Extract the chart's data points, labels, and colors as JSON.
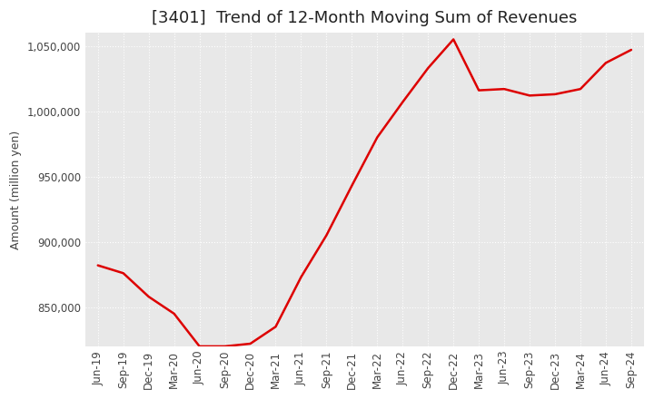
{
  "title": "[3401]  Trend of 12-Month Moving Sum of Revenues",
  "ylabel": "Amount (million yen)",
  "background_color": "#ffffff",
  "plot_bg_color": "#e8e8e8",
  "line_color": "#dd0000",
  "grid_color": "#ffffff",
  "x_labels": [
    "Jun-19",
    "Sep-19",
    "Dec-19",
    "Mar-20",
    "Jun-20",
    "Sep-20",
    "Dec-20",
    "Mar-21",
    "Jun-21",
    "Sep-21",
    "Dec-21",
    "Mar-22",
    "Jun-22",
    "Sep-22",
    "Dec-22",
    "Mar-23",
    "Jun-23",
    "Sep-23",
    "Dec-23",
    "Mar-24",
    "Jun-24",
    "Sep-24"
  ],
  "values": [
    882000,
    876000,
    858000,
    845000,
    820000,
    820000,
    822000,
    835000,
    873000,
    905000,
    943000,
    980000,
    1007000,
    1033000,
    1055000,
    1016000,
    1017000,
    1012000,
    1013000,
    1017000,
    1037000,
    1047000
  ],
  "ylim": [
    820000,
    1060000
  ],
  "yticks": [
    850000,
    900000,
    950000,
    1000000,
    1050000
  ],
  "title_fontsize": 13,
  "label_fontsize": 9,
  "tick_fontsize": 8.5
}
